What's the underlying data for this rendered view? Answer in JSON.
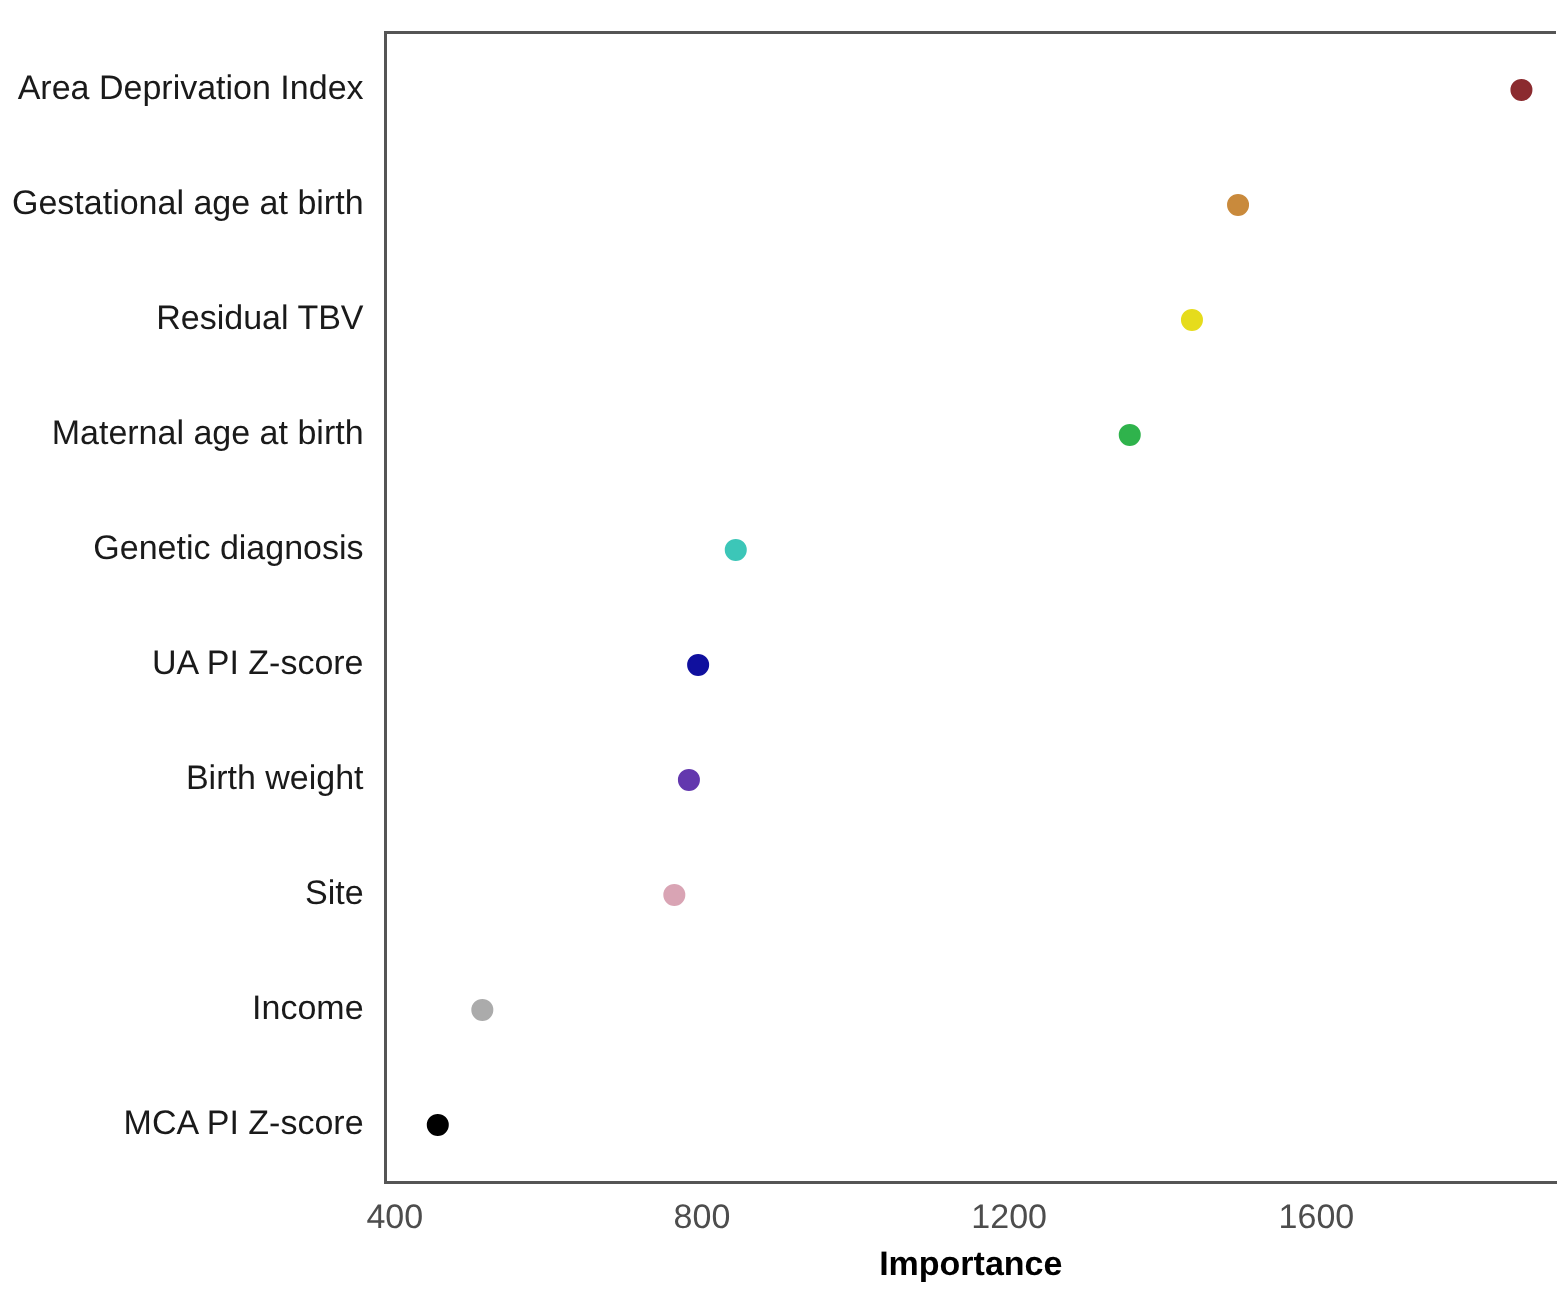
{
  "chart_data": {
    "type": "scatter",
    "orientation": "horizontal",
    "xlabel": "Importance",
    "categories": [
      "Area Deprivation Index",
      "Gestational age at birth",
      "Residual TBV",
      "Maternal age at birth",
      "Genetic diagnosis",
      "UA PI Z-score",
      "Birth weight",
      "Site",
      "Income",
      "MCA PI Z-score"
    ],
    "values": [
      1867,
      1498,
      1438,
      1357,
      844,
      795,
      783,
      764,
      514,
      456
    ],
    "colors": [
      "#8b2b2f",
      "#c98a3c",
      "#e6dc1c",
      "#2fb34c",
      "#3cc6b8",
      "#10109e",
      "#6338ae",
      "#d9a4b4",
      "#ababab",
      "#000000"
    ],
    "xlim": [
      388,
      1912
    ],
    "xticks": [
      400,
      800,
      1200,
      1600
    ],
    "marker": "circle",
    "grid": false,
    "legend": false
  }
}
